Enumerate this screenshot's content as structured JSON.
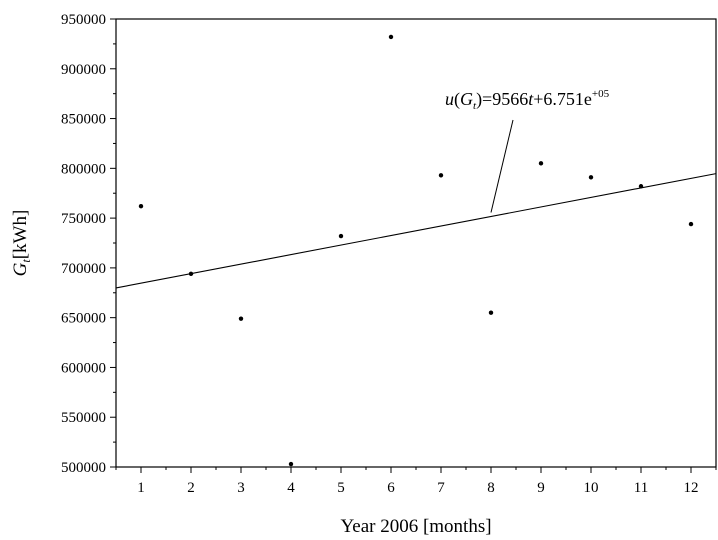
{
  "chart_data": {
    "type": "scatter",
    "title": "",
    "xlabel": "Year 2006 [months]",
    "ylabel": {
      "main": "G",
      "sub": "t",
      "unit": "[kWh]"
    },
    "xlim": [
      0.5,
      12.5
    ],
    "ylim": [
      500000,
      950000
    ],
    "xticks": [
      1,
      2,
      3,
      4,
      5,
      6,
      7,
      8,
      9,
      10,
      11,
      12
    ],
    "yticks": [
      500000,
      550000,
      600000,
      650000,
      700000,
      750000,
      800000,
      850000,
      900000,
      950000
    ],
    "grid": false,
    "series": [
      {
        "x": [
          1,
          2,
          3,
          4,
          5,
          6,
          7,
          8,
          9,
          10,
          11,
          12
        ],
        "y": [
          762000,
          694000,
          649000,
          503000,
          732000,
          932000,
          793000,
          655000,
          805000,
          791000,
          782000,
          744000
        ]
      }
    ],
    "fit": {
      "slope": 9566,
      "intercept": 675100
    },
    "annotation": {
      "u": "u",
      "open": "(",
      "G": "G",
      "t_sub": "t",
      "close": ")=9566",
      "t": "t",
      "rest": "+6.751e",
      "exp": "+05",
      "pointer_x": 8
    }
  }
}
